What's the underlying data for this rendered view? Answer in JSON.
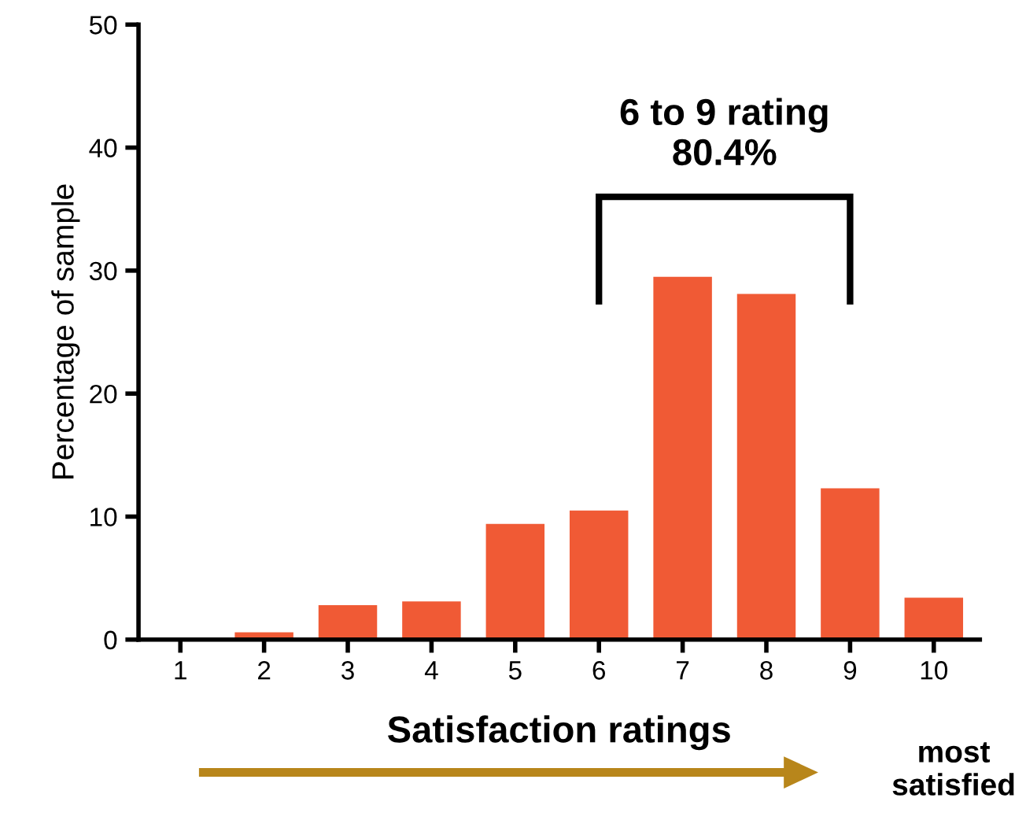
{
  "chart_data": {
    "type": "bar",
    "categories": [
      "1",
      "2",
      "3",
      "4",
      "5",
      "6",
      "7",
      "8",
      "9",
      "10"
    ],
    "values": [
      0,
      0.6,
      2.8,
      3.1,
      9.4,
      10.5,
      29.5,
      28.1,
      12.3,
      3.4
    ],
    "color": "#f05a35",
    "xlabel": "Satisfaction ratings",
    "ylabel": "Percentage of sample",
    "ylim": [
      0,
      50
    ],
    "yticks": [
      0,
      10,
      20,
      30,
      40,
      50
    ],
    "grid": false,
    "annotations": [
      "6 to 9 rating\n80.4%",
      "most\nsatisfied"
    ]
  }
}
